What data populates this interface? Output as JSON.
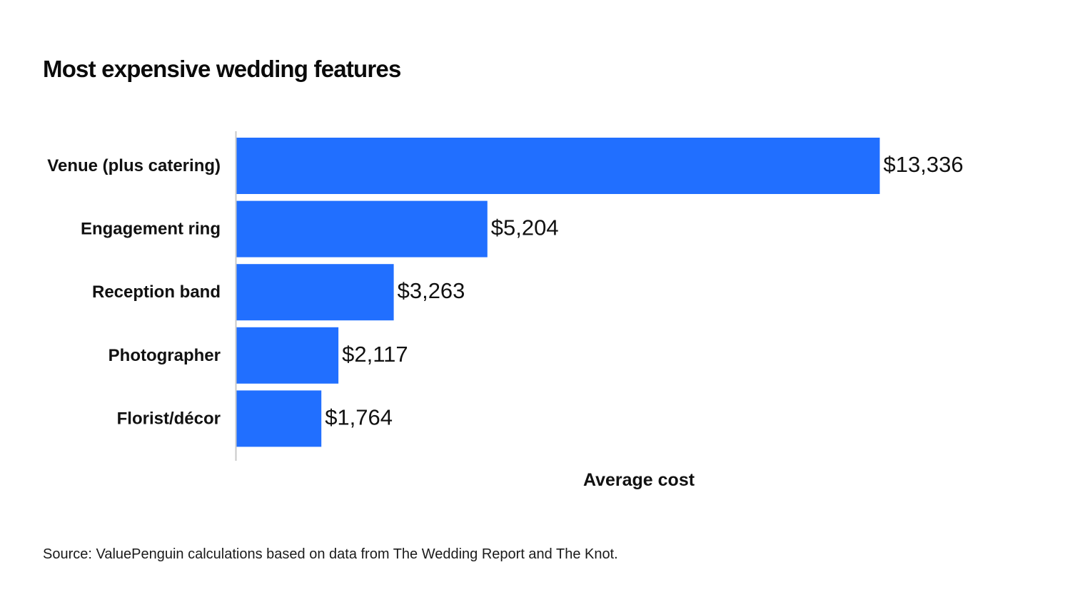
{
  "chart_data": {
    "type": "bar",
    "orientation": "horizontal",
    "title": "Most expensive wedding features",
    "categories": [
      "Venue (plus catering)",
      "Engagement ring",
      "Reception band",
      "Photographer",
      "Florist/décor"
    ],
    "values": [
      13336,
      5204,
      3263,
      2117,
      1764
    ],
    "value_labels": [
      "$13,336",
      "$5,204",
      "$3,263",
      "$2,117",
      "$1,764"
    ],
    "xlabel": "Average cost",
    "ylabel": "",
    "xlim": [
      0,
      15000
    ],
    "grid": false,
    "legend": "none",
    "colors": {
      "bar": "#216fff",
      "axis": "#c8c8c8"
    }
  },
  "source": "Source: ValuePenguin calculations based on data from The Wedding Report and The Knot."
}
